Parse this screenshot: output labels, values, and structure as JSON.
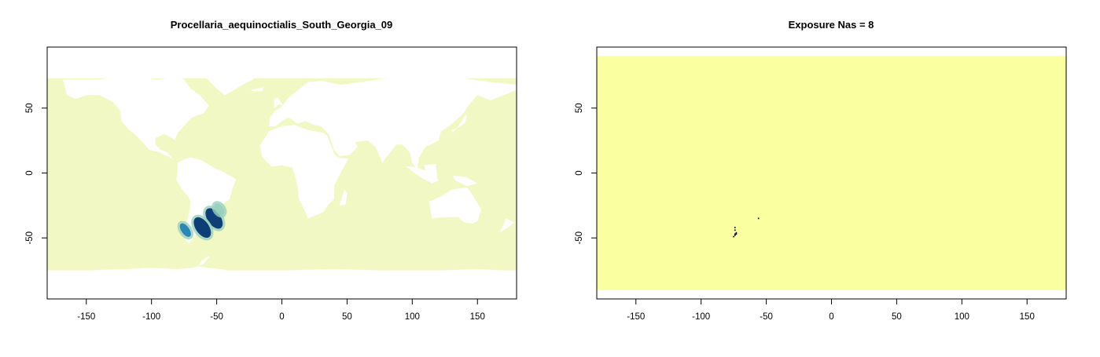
{
  "chart_data": [
    {
      "type": "heatmap",
      "title": "Procellaria_aequinoctialis_South_Georgia_09",
      "xlabel": "",
      "ylabel": "",
      "xlim": [
        -180,
        180
      ],
      "ylim": [
        -97,
        97
      ],
      "x_ticks": [
        -150,
        -100,
        -50,
        0,
        50,
        100,
        150
      ],
      "y_ticks": [
        -50,
        0,
        50
      ],
      "colors": {
        "ocean": "#f2f8c3",
        "land": "#ffffff",
        "high": "#0d3f76",
        "mid": "#2a88b6",
        "low": "#98d1be"
      },
      "hotspots": [
        {
          "lon": -52,
          "lat": -35,
          "intensity": "high"
        },
        {
          "lon": -61,
          "lat": -42,
          "intensity": "high"
        },
        {
          "lon": -74,
          "lat": -44,
          "intensity": "mid"
        },
        {
          "lon": -48,
          "lat": -28,
          "intensity": "low"
        }
      ]
    },
    {
      "type": "heatmap",
      "title": "Exposure Nas = 8",
      "xlabel": "",
      "ylabel": "",
      "xlim": [
        -180,
        180
      ],
      "ylim": [
        -97,
        97
      ],
      "x_ticks": [
        -150,
        -100,
        -50,
        0,
        50,
        100,
        150
      ],
      "y_ticks": [
        -50,
        0,
        50
      ],
      "colors": {
        "fill": "#faff9f",
        "na": "#000000"
      },
      "na_points": [
        {
          "lon": -74,
          "lat": -42
        },
        {
          "lon": -74,
          "lat": -44
        },
        {
          "lon": -73,
          "lat": -46
        },
        {
          "lon": -74,
          "lat": -47
        },
        {
          "lon": -74,
          "lat": -48
        },
        {
          "lon": -75,
          "lat": -49
        },
        {
          "lon": -73,
          "lat": -47
        },
        {
          "lon": -56,
          "lat": -35
        }
      ]
    }
  ]
}
